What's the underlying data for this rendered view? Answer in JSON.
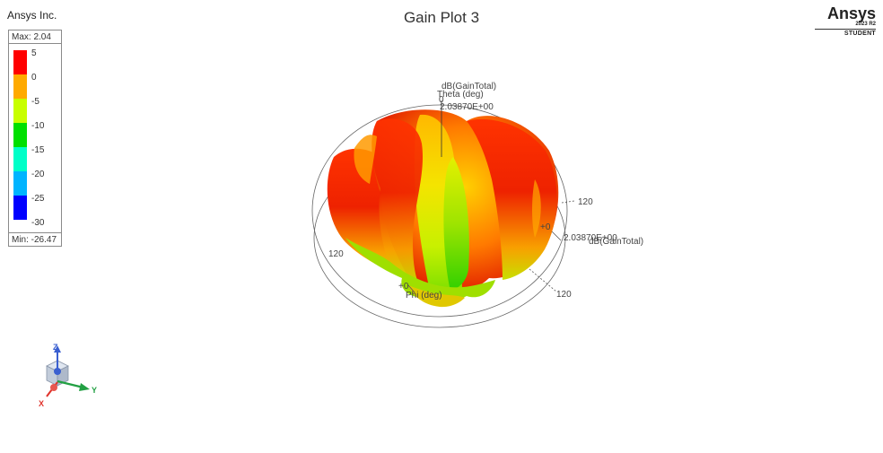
{
  "header": {
    "company": "Ansys Inc.",
    "plot_title": "Gain Plot 3",
    "brand": {
      "name": "Ansys",
      "version": "2023 R2",
      "edition": "STUDENT"
    }
  },
  "legend": {
    "max_label": "Max: 2.04",
    "min_label": "Min: -26.47",
    "entries": [
      {
        "label": "5",
        "color": "#ff0000"
      },
      {
        "label": "0",
        "color": "#ffaa00"
      },
      {
        "label": "-5",
        "color": "#c8ff00"
      },
      {
        "label": "-10",
        "color": "#00e000"
      },
      {
        "label": "-15",
        "color": "#00ffc8"
      },
      {
        "label": "-20",
        "color": "#00b4ff"
      },
      {
        "label": "-25",
        "color": "#0000ff"
      },
      {
        "label": "-30",
        "color": ""
      }
    ]
  },
  "plot": {
    "z_axis_label_1": "dB(GainTotal)",
    "z_axis_label_2": "Theta (deg)",
    "z_axis_value": "0",
    "z_axis_scale": "2.03870E+00",
    "right_axis_120": "120",
    "right_axis_value": "+0",
    "right_axis_scale": "2.03870E+00",
    "right_axis_label": "dB(GainTotal)",
    "left_axis_120": "120",
    "bottom_axis_value": "+0",
    "bottom_axis_label": "Phi (deg)",
    "bottom_axis_120": "120"
  },
  "triad": {
    "z_label": "Z",
    "y_label": "Y",
    "x_label": "X",
    "z_color": "#3a5fd0",
    "y_color": "#22a043",
    "x_color": "#e0342c"
  }
}
